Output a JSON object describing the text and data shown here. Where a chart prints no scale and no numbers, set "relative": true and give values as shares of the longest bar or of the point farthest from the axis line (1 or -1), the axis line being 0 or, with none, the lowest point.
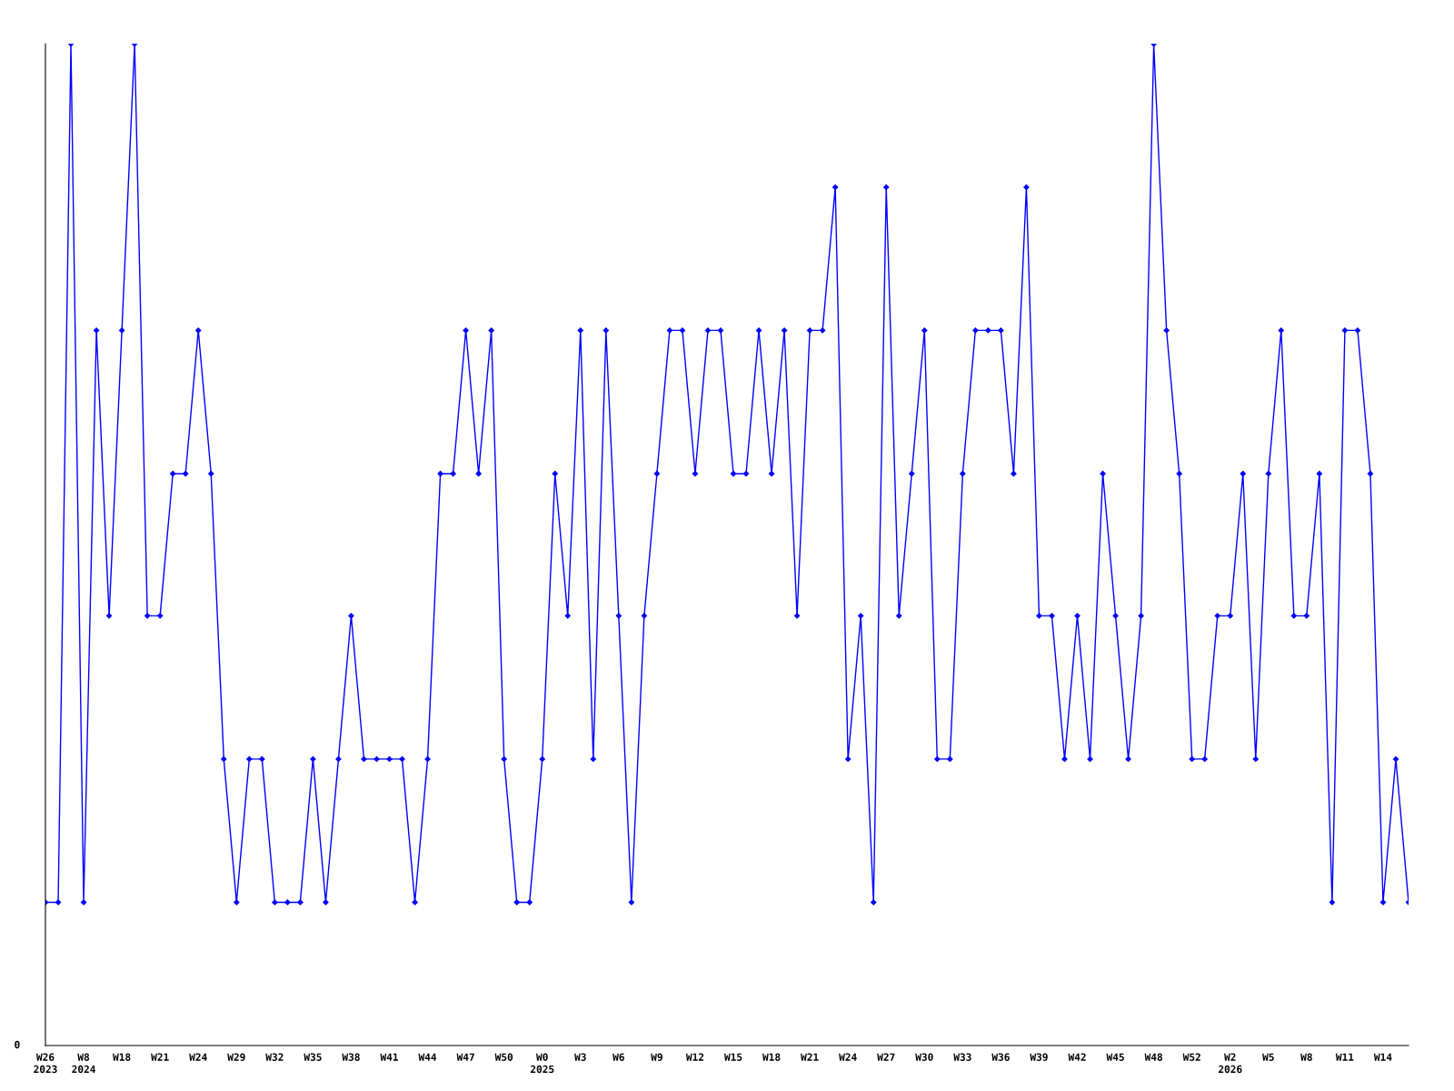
{
  "chart_data": {
    "type": "line",
    "relative": true,
    "color": "#0000ff",
    "marker": "diamond",
    "line_style": "solid",
    "grid": false,
    "legend": false,
    "annotations": [
      "0"
    ],
    "categories": [
      "W26\n2023",
      null,
      null,
      "W8\n2024",
      null,
      null,
      "W18",
      null,
      null,
      "W21",
      null,
      null,
      "W24",
      null,
      null,
      "W29",
      null,
      null,
      "W32",
      null,
      null,
      "W35",
      null,
      null,
      "W38",
      null,
      null,
      "W41",
      null,
      null,
      "W44",
      null,
      null,
      "W47",
      null,
      null,
      "W50",
      null,
      null,
      "W0\n2025",
      null,
      null,
      "W3",
      null,
      null,
      "W6",
      null,
      null,
      "W9",
      null,
      null,
      "W12",
      null,
      null,
      "W15",
      null,
      null,
      "W18",
      null,
      null,
      "W21",
      null,
      null,
      "W24",
      null,
      null,
      "W27",
      null,
      null,
      "W30",
      null,
      null,
      "W33",
      null,
      null,
      "W36",
      null,
      null,
      "W39",
      null,
      null,
      "W42",
      null,
      null,
      "W45",
      null,
      null,
      "W48",
      null,
      null,
      "W52",
      null,
      null,
      "W2\n2026",
      null,
      null,
      "W5",
      null,
      null,
      "W8",
      null,
      null,
      "W11",
      null,
      null,
      "W14",
      null,
      null
    ],
    "values": [
      0.143,
      0.143,
      1,
      0.143,
      0.714,
      0.429,
      0.714,
      1,
      0.429,
      0.429,
      0.571,
      0.571,
      0.714,
      0.571,
      0.286,
      0.143,
      0.286,
      0.286,
      0.143,
      0.143,
      0.143,
      0.286,
      0.143,
      0.286,
      0.429,
      0.286,
      0.286,
      0.286,
      0.286,
      0.143,
      0.286,
      0.571,
      0.571,
      0.714,
      0.571,
      0.714,
      0.286,
      0.143,
      0.143,
      0.286,
      0.571,
      0.429,
      0.714,
      0.286,
      0.714,
      0.429,
      0.143,
      0.429,
      0.571,
      0.714,
      0.714,
      0.571,
      0.714,
      0.714,
      0.571,
      0.571,
      0.714,
      0.571,
      0.714,
      0.429,
      0.714,
      0.714,
      0.857,
      0.286,
      0.429,
      0.143,
      0.857,
      0.429,
      0.571,
      0.714,
      0.286,
      0.286,
      0.571,
      0.714,
      0.714,
      0.714,
      0.571,
      0.857,
      0.429,
      0.429,
      0.286,
      0.429,
      0.286,
      0.571,
      0.429,
      0.286,
      0.429,
      1,
      0.714,
      0.571,
      0.286,
      0.286,
      0.429,
      0.429,
      0.571,
      0.286,
      0.571,
      0.714,
      0.429,
      0.429,
      0.571,
      0.143,
      0.714,
      0.714,
      0.571,
      0.143,
      0.286,
      0.143
    ]
  }
}
